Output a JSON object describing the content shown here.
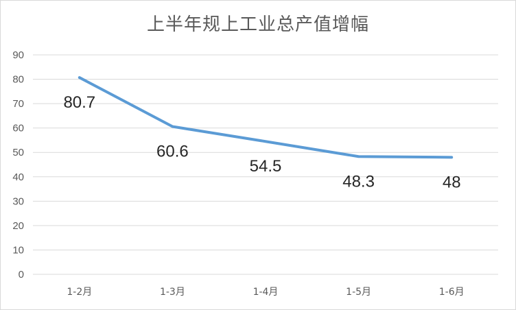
{
  "chart_data": {
    "type": "line",
    "title": "上半年规上工业总产值增幅",
    "categories": [
      "1-2月",
      "1-3月",
      "1-4月",
      "1-5月",
      "1-6月"
    ],
    "series": [
      {
        "values": [
          80.7,
          60.6,
          54.5,
          48.3,
          48
        ]
      }
    ],
    "data_labels": [
      "80.7",
      "60.6",
      "54.5",
      "48.3",
      "48"
    ],
    "yticks": [
      "0",
      "10",
      "20",
      "30",
      "40",
      "50",
      "60",
      "70",
      "80",
      "90"
    ],
    "ylim": [
      0,
      90
    ],
    "grid": true,
    "legend": "none",
    "line_color": "#5b9bd5",
    "grid_color": "#d9d9d9"
  }
}
